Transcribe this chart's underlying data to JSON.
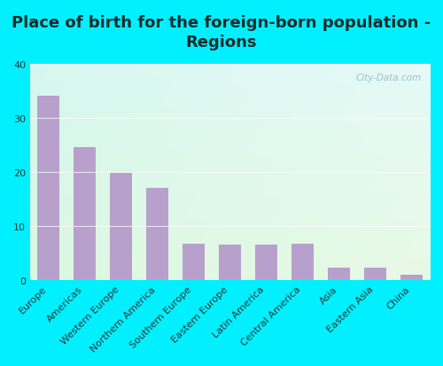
{
  "title": "Place of birth for the foreign-born population -\nRegions",
  "categories": [
    "Europe",
    "Americas",
    "Western Europe",
    "Northern America",
    "Southern Europe",
    "Eastern Europe",
    "Latin America",
    "Central America",
    "Asia",
    "Eastern Asia",
    "China"
  ],
  "values": [
    34.0,
    24.5,
    19.8,
    17.0,
    6.7,
    6.6,
    6.5,
    6.7,
    2.2,
    2.3,
    1.0
  ],
  "bar_color": "#b8a0cc",
  "bg_outer": "#00f0ff",
  "bg_plot_topleft_r": 0.82,
  "bg_plot_topleft_g": 0.96,
  "bg_plot_topleft_b": 0.93,
  "bg_plot_botright_r": 0.88,
  "bg_plot_botright_g": 0.97,
  "bg_plot_botright_b": 0.87,
  "ylim": [
    0,
    40
  ],
  "yticks": [
    0,
    10,
    20,
    30,
    40
  ],
  "title_fontsize": 13,
  "tick_fontsize": 8,
  "watermark": "City-Data.com"
}
